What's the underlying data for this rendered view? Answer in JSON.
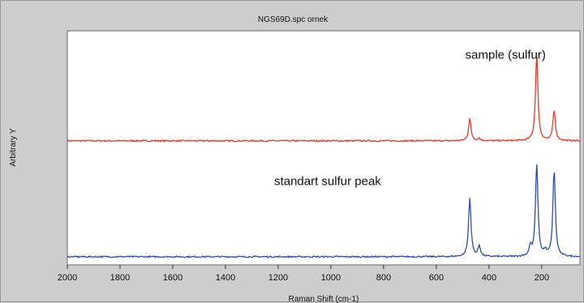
{
  "chart_data": {
    "type": "line",
    "title": "NGS69D.spc  ornek",
    "xlabel": "Raman Shift (cm-1)",
    "ylabel": "Arbitrary Y",
    "xlim": [
      2000,
      55
    ],
    "ylim": [
      0,
      1
    ],
    "x_reversed": true,
    "x_ticks": [
      2000,
      1800,
      1600,
      1400,
      1200,
      1000,
      800,
      600,
      400,
      200
    ],
    "grid": false,
    "series": [
      {
        "color": "#e8392b",
        "baseline": 0.53,
        "peaks": [
          {
            "x": 473,
            "height": 0.095
          },
          {
            "x": 437,
            "height": 0.01
          },
          {
            "x": 219,
            "height": 0.37
          },
          {
            "x": 153,
            "height": 0.13
          }
        ]
      },
      {
        "color": "#2f4fa8",
        "baseline": 0.035,
        "peaks": [
          {
            "x": 473,
            "height": 0.25
          },
          {
            "x": 437,
            "height": 0.045
          },
          {
            "x": 243,
            "height": 0.04
          },
          {
            "x": 219,
            "height": 0.4
          },
          {
            "x": 187,
            "height": 0.02
          },
          {
            "x": 153,
            "height": 0.37
          }
        ]
      }
    ],
    "annotations": [
      {
        "text": "sample (sulfur)",
        "x": 490,
        "y": 0.88
      },
      {
        "text": "standart sulfur peak",
        "x": 1215,
        "y": 0.34
      }
    ]
  }
}
